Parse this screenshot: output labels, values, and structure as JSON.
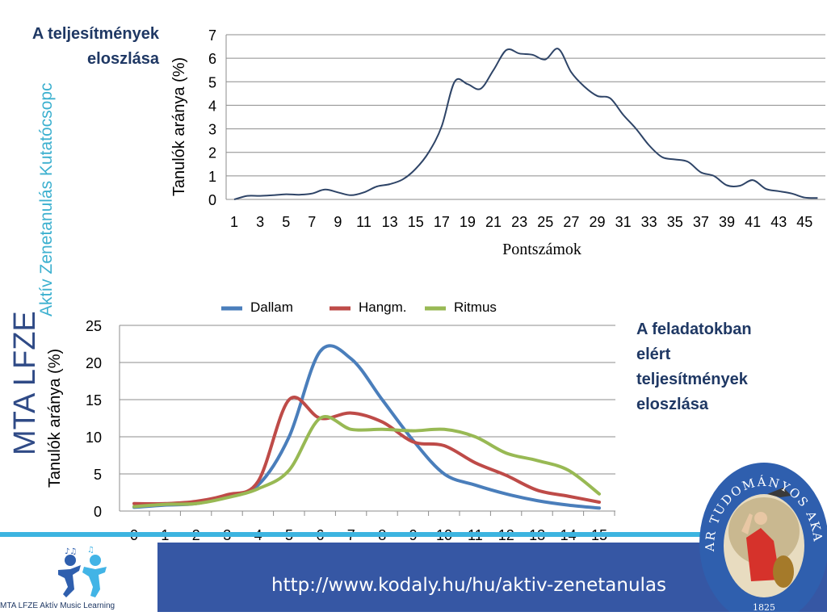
{
  "page": {
    "title_top": [
      "A teljesítmények",
      "eloszlása"
    ],
    "title_right": [
      "A feladatokban",
      "elért",
      "teljesítmények",
      "eloszlása"
    ],
    "vertical_brand_text": "Aktív Zenetanulás Kutatócsopc",
    "vertical_logo_text": "MTA LFZE",
    "footer_url": "http://www.kodaly.hu/hu/aktiv-zenetanulas",
    "logo_caption": "MTA LFZE Aktív Music Learning",
    "emblem_text": "MAGYAR TUDOMÁNYOS AKADÉMIA",
    "emblem_year": "1825",
    "colors": {
      "title": "#1f3864",
      "brand_cyan": "#3cb0cf",
      "footer_blue": "#3657a4",
      "footer_line": "#3cb4e0",
      "line1": "#2e4467",
      "dallam": "#4a7ebb",
      "hangm": "#be4b48",
      "ritmus": "#98b954"
    }
  },
  "chart_data": [
    {
      "type": "line",
      "title": "",
      "xlabel": "Pontszámok",
      "ylabel": "Tanulók aránya (%)",
      "ylim": [
        0,
        7
      ],
      "yticks": [
        0,
        1,
        2,
        3,
        4,
        5,
        6,
        7
      ],
      "x": [
        1,
        2,
        3,
        4,
        5,
        6,
        7,
        8,
        9,
        10,
        11,
        12,
        13,
        14,
        15,
        16,
        17,
        18,
        19,
        20,
        21,
        22,
        23,
        24,
        25,
        26,
        27,
        28,
        29,
        30,
        31,
        32,
        33,
        34,
        35,
        36,
        37,
        38,
        39,
        40,
        41,
        42,
        43,
        44,
        45,
        46
      ],
      "xtick_labels": [
        "1",
        "3",
        "5",
        "7",
        "9",
        "11",
        "13",
        "15",
        "17",
        "19",
        "21",
        "23",
        "25",
        "27",
        "29",
        "31",
        "33",
        "35",
        "37",
        "39",
        "41",
        "43",
        "45"
      ],
      "grid": true,
      "legend": "none",
      "series": [
        {
          "values": [
            0.0,
            0.15,
            0.15,
            0.18,
            0.22,
            0.2,
            0.25,
            0.42,
            0.3,
            0.18,
            0.3,
            0.55,
            0.65,
            0.85,
            1.3,
            2.0,
            3.1,
            5.0,
            4.9,
            4.7,
            5.5,
            6.35,
            6.2,
            6.15,
            5.95,
            6.4,
            5.4,
            4.8,
            4.4,
            4.3,
            3.6,
            3.0,
            2.3,
            1.8,
            1.7,
            1.6,
            1.15,
            1.0,
            0.6,
            0.58,
            0.82,
            0.45,
            0.35,
            0.25,
            0.08,
            0.06
          ]
        }
      ]
    },
    {
      "type": "line",
      "title": "",
      "xlabel": "Pontszámok",
      "ylabel": "Tanulók aránya (%)",
      "ylim": [
        0,
        25
      ],
      "yticks": [
        0,
        5,
        10,
        15,
        20,
        25
      ],
      "categories": [
        "0",
        "1",
        "2",
        "3",
        "4",
        "5",
        "6",
        "7",
        "8",
        "9",
        "10",
        "11",
        "12",
        "13",
        "14",
        "15"
      ],
      "grid": true,
      "legend": "top",
      "series": [
        {
          "name": "Dallam",
          "values": [
            0.5,
            0.8,
            1.0,
            2.0,
            3.5,
            10.0,
            21.5,
            20.5,
            15.0,
            9.5,
            5.0,
            3.5,
            2.3,
            1.4,
            0.8,
            0.4
          ]
        },
        {
          "name": "Hangm.",
          "values": [
            1.0,
            1.0,
            1.3,
            2.2,
            4.0,
            15.0,
            12.5,
            13.2,
            12.0,
            9.3,
            8.8,
            6.5,
            4.8,
            2.8,
            2.0,
            1.2
          ]
        },
        {
          "name": "Ritmus",
          "values": [
            0.6,
            0.9,
            1.0,
            1.8,
            3.0,
            5.5,
            12.5,
            11.0,
            11.0,
            10.8,
            11.0,
            10.0,
            7.8,
            6.8,
            5.5,
            2.3
          ]
        }
      ]
    }
  ]
}
